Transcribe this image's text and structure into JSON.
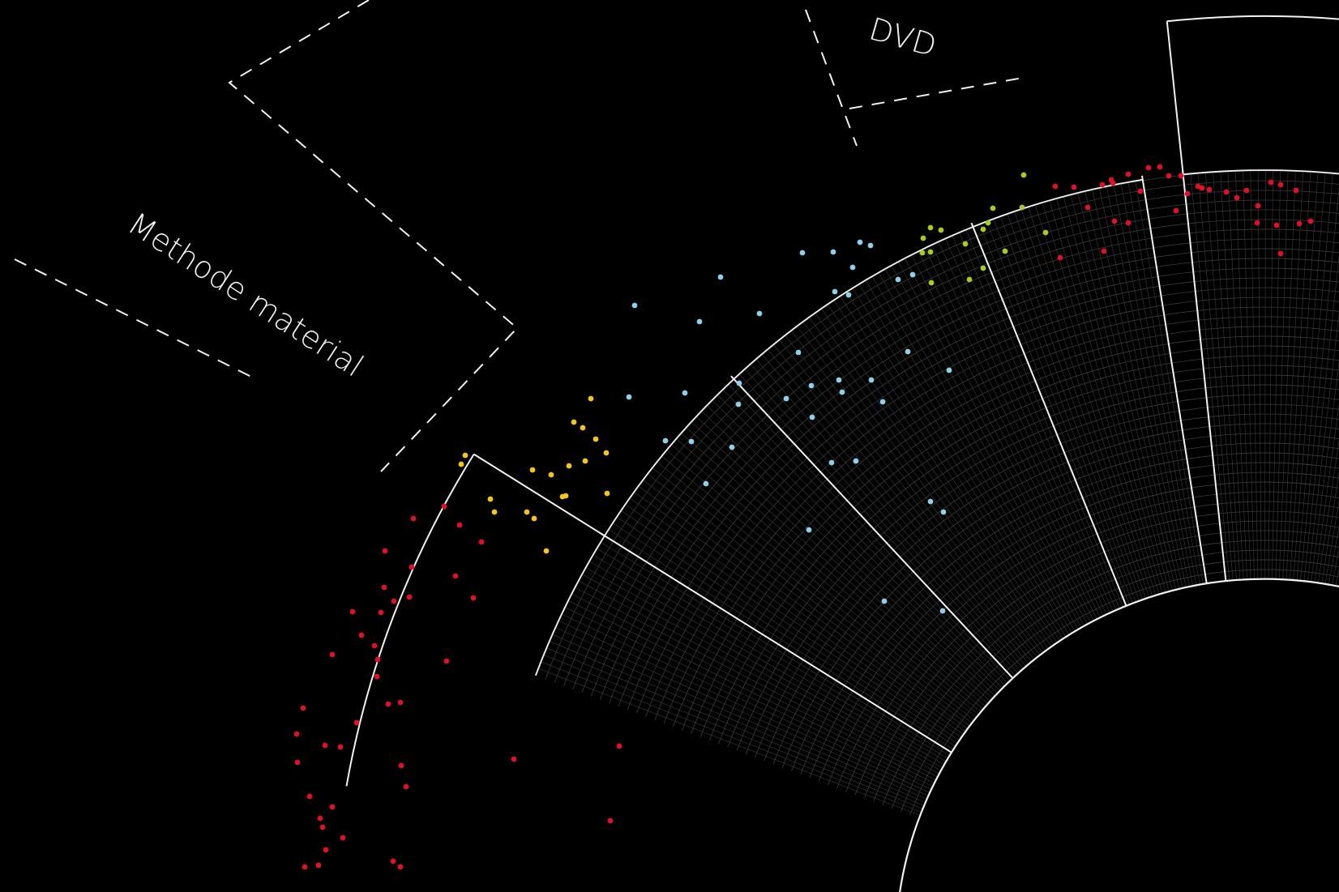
{
  "chart_data": {
    "type": "scatter",
    "title": "",
    "xlabel": "",
    "ylabel": "",
    "sector_labels": {
      "methode": "Methode material",
      "dvd": "DVD"
    },
    "series": [
      {
        "color": "#e0102a",
        "points": [
          [
            510,
            640
          ],
          [
            548,
            625
          ],
          [
            567,
            648
          ],
          [
            594,
            669
          ],
          [
            475,
            680
          ],
          [
            508,
            700
          ],
          [
            562,
            711
          ],
          [
            474,
            725
          ],
          [
            486,
            742
          ],
          [
            505,
            737
          ],
          [
            584,
            738
          ],
          [
            435,
            755
          ],
          [
            470,
            756
          ],
          [
            446,
            784
          ],
          [
            462,
            797
          ],
          [
            410,
            808
          ],
          [
            466,
            814
          ],
          [
            551,
            816
          ],
          [
            465,
            835
          ],
          [
            374,
            874
          ],
          [
            479,
            869
          ],
          [
            494,
            867
          ],
          [
            440,
            892
          ],
          [
            366,
            906
          ],
          [
            420,
            922
          ],
          [
            401,
            920
          ],
          [
            634,
            937
          ],
          [
            367,
            941
          ],
          [
            495,
            945
          ],
          [
            501,
            971
          ],
          [
            764,
            921
          ],
          [
            382,
            983
          ],
          [
            410,
            996
          ],
          [
            395,
            1010
          ],
          [
            423,
            1034
          ],
          [
            398,
            1021
          ],
          [
            402,
            1049
          ],
          [
            376,
            1070
          ],
          [
            393,
            1068
          ],
          [
            485,
            1063
          ],
          [
            494,
            1070
          ],
          [
            753,
            1013
          ]
        ]
      },
      {
        "color": "#f5c518",
        "points": [
          [
            729,
            492
          ],
          [
            574,
            562
          ],
          [
            569,
            573
          ],
          [
            708,
            521
          ],
          [
            719,
            528
          ],
          [
            657,
            580
          ],
          [
            702,
            575
          ],
          [
            680,
            586
          ],
          [
            605,
            616
          ],
          [
            610,
            632
          ],
          [
            748,
            559
          ],
          [
            694,
            613
          ],
          [
            698,
            612
          ],
          [
            722,
            569
          ],
          [
            650,
            632
          ],
          [
            735,
            542
          ],
          [
            659,
            640
          ],
          [
            749,
            609
          ],
          [
            674,
            680
          ]
        ]
      },
      {
        "color": "#8ecfea",
        "points": [
          [
            990,
            312
          ],
          [
            1028,
            311
          ],
          [
            1061,
            299
          ],
          [
            1074,
            303
          ],
          [
            783,
            377
          ],
          [
            1052,
            330
          ],
          [
            863,
            397
          ],
          [
            937,
            387
          ],
          [
            889,
            342
          ],
          [
            1030,
            360
          ],
          [
            1047,
            364
          ],
          [
            1108,
            345
          ],
          [
            1126,
            339
          ],
          [
            985,
            435
          ],
          [
            1001,
            476
          ],
          [
            912,
            473
          ],
          [
            1171,
            457
          ],
          [
            1035,
            469
          ],
          [
            1120,
            434
          ],
          [
            1075,
            469
          ],
          [
            1089,
            496
          ],
          [
            776,
            490
          ],
          [
            845,
            485
          ],
          [
            821,
            544
          ],
          [
            853,
            545
          ],
          [
            1039,
            484
          ],
          [
            970,
            492
          ],
          [
            911,
            499
          ],
          [
            1002,
            515
          ],
          [
            1026,
            571
          ],
          [
            1056,
            569
          ],
          [
            903,
            552
          ],
          [
            871,
            597
          ],
          [
            1148,
            619
          ],
          [
            1164,
            632
          ],
          [
            998,
            654
          ],
          [
            1091,
            742
          ],
          [
            1163,
            754
          ]
        ]
      },
      {
        "color": "#a8cc1e",
        "points": [
          [
            1263,
            216
          ],
          [
            1219,
            275
          ],
          [
            1225,
            257
          ],
          [
            1261,
            256
          ],
          [
            1148,
            281
          ],
          [
            1161,
            284
          ],
          [
            1191,
            301
          ],
          [
            1139,
            294
          ],
          [
            1213,
            283
          ],
          [
            1148,
            311
          ],
          [
            1290,
            287
          ],
          [
            1240,
            310
          ],
          [
            1138,
            312
          ],
          [
            1213,
            331
          ],
          [
            1196,
            345
          ],
          [
            1149,
            349
          ]
        ]
      },
      {
        "color": "#e0102a",
        "points": [
          [
            1373,
            226
          ],
          [
            1431,
            206
          ],
          [
            1417,
            207
          ],
          [
            1442,
            217
          ],
          [
            1478,
            230
          ],
          [
            1457,
            217
          ],
          [
            1492,
            234
          ],
          [
            1302,
            230
          ],
          [
            1325,
            231
          ],
          [
            1360,
            228
          ],
          [
            1371,
            222
          ],
          [
            1392,
            215
          ],
          [
            1483,
            232
          ],
          [
            1407,
            236
          ],
          [
            1465,
            239
          ],
          [
            1538,
            235
          ],
          [
            1526,
            244
          ],
          [
            1599,
            235
          ],
          [
            1513,
            237
          ],
          [
            1568,
            225
          ],
          [
            1580,
            228
          ],
          [
            1552,
            254
          ],
          [
            1342,
            256
          ],
          [
            1375,
            273
          ],
          [
            1392,
            275
          ],
          [
            1451,
            260
          ],
          [
            1551,
            275
          ],
          [
            1575,
            278
          ],
          [
            1603,
            276
          ],
          [
            1617,
            273
          ],
          [
            1362,
            310
          ],
          [
            1308,
            318
          ],
          [
            1580,
            313
          ]
        ]
      }
    ]
  }
}
